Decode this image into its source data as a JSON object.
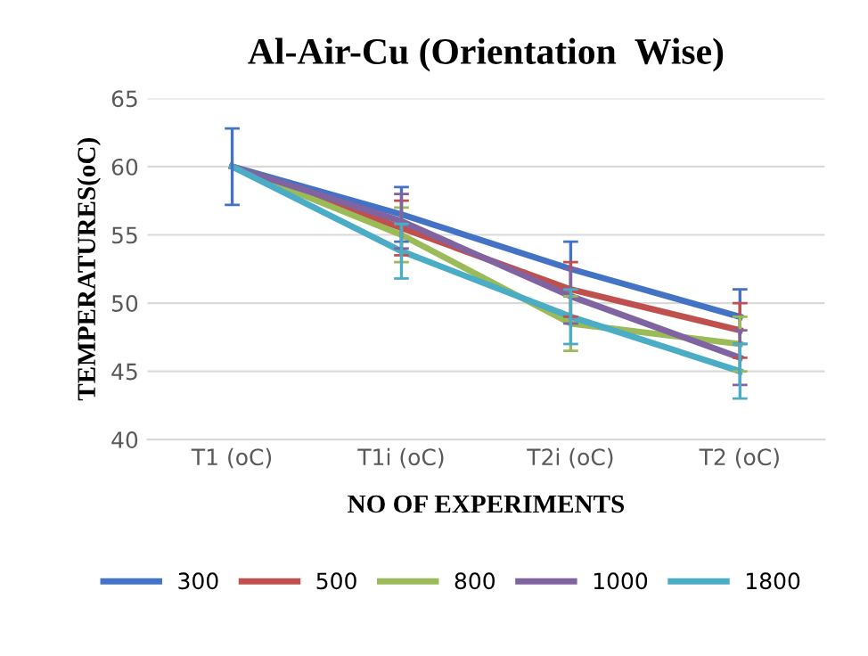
{
  "chart_data": {
    "type": "line",
    "title": "Al-Air-Cu (Orientation  Wise)",
    "xlabel": "NO OF EXPERIMENTS",
    "ylabel": "TEMPERATURES(oC)",
    "categories": [
      "T1 (oC)",
      "T1i (oC)",
      "T2i (oC)",
      "T2 (oC)"
    ],
    "series": [
      {
        "name": "300",
        "color": "#4472c4",
        "values": [
          60,
          56.5,
          52.5,
          49
        ],
        "errors": [
          2.8,
          2,
          2,
          2
        ]
      },
      {
        "name": "500",
        "color": "#c0504d",
        "values": [
          60,
          55.5,
          51,
          48
        ],
        "errors": [
          null,
          2,
          2,
          2
        ]
      },
      {
        "name": "800",
        "color": "#9bbb59",
        "values": [
          60,
          55,
          48.5,
          47
        ],
        "errors": [
          null,
          2,
          2,
          2
        ]
      },
      {
        "name": "1000",
        "color": "#8064a2",
        "values": [
          60,
          56,
          50.5,
          46
        ],
        "errors": [
          null,
          2,
          2,
          2
        ]
      },
      {
        "name": "1800",
        "color": "#4bacc6",
        "values": [
          60,
          53.8,
          49,
          45
        ],
        "errors": [
          null,
          2,
          2,
          2
        ]
      }
    ],
    "ylim": [
      40,
      65
    ],
    "yticks": [
      40,
      45,
      50,
      55,
      60,
      65
    ],
    "grid": "y",
    "legend": "bottom",
    "marker": "none",
    "line_style": "solid"
  }
}
